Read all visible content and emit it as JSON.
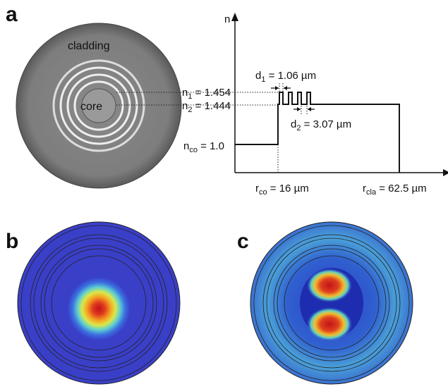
{
  "panel_a": {
    "label": "a",
    "cladding": "cladding",
    "core": "core",
    "axis": "n",
    "n1": {
      "symbol": "n",
      "sub": "1",
      "text": " = 1.454"
    },
    "n2": {
      "symbol": "n",
      "sub": "2",
      "text": " = 1.444"
    },
    "d1": {
      "symbol": "d",
      "sub": "1",
      "text": " = 1.06 µm"
    },
    "d2": {
      "symbol": "d",
      "sub": "2",
      "text": " = 3.07 µm"
    },
    "nco": {
      "symbol": "n",
      "sub": "co",
      "text": " = 1.0"
    },
    "rco": {
      "symbol": "r",
      "sub": "co",
      "text": " = 16 µm"
    },
    "rcla": {
      "symbol": "r",
      "sub": "cla",
      "text": " = 62.5 µm"
    }
  },
  "panel_b": {
    "label": "b"
  },
  "panel_c": {
    "label": "c"
  }
}
